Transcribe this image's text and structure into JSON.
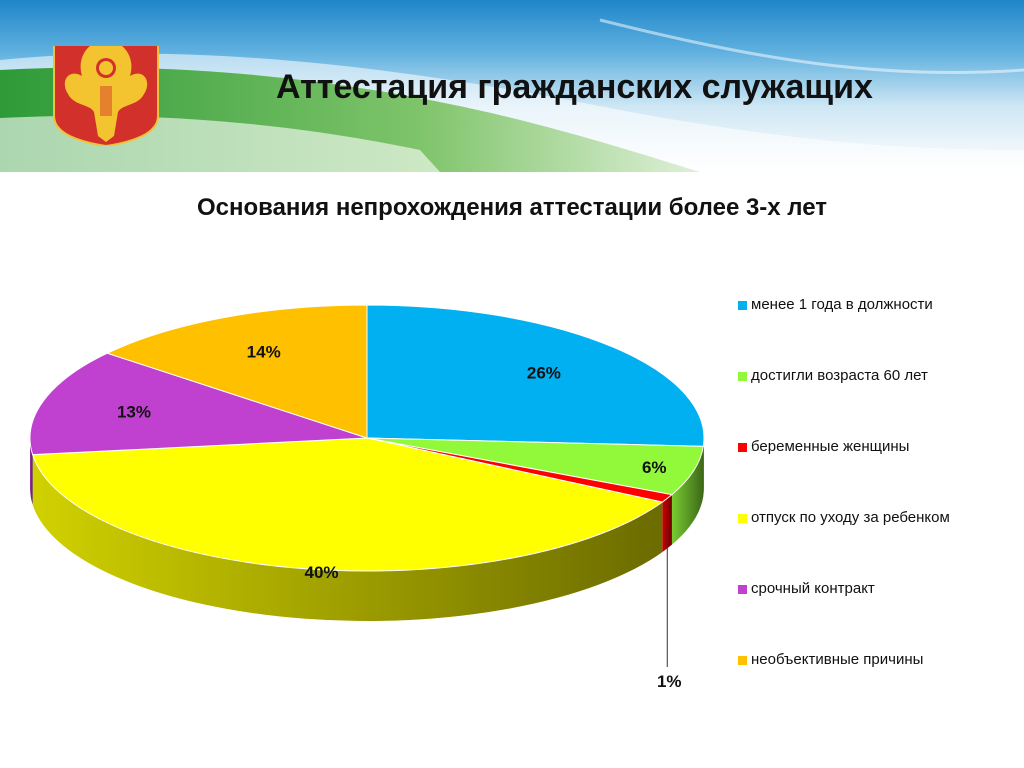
{
  "header": {
    "title": "Аттестация гражданских служащих",
    "logo_icon": "komi-coat-of-arms-icon"
  },
  "chart_data": {
    "type": "pie",
    "title": "Основания непрохождения аттестации более 3-х лет",
    "legend_position": "right",
    "three_d": true,
    "slices": [
      {
        "label": "менее 1 года в должности",
        "value": 26,
        "display": "26%",
        "color": "#00b0f0"
      },
      {
        "label": "достигли возраста 60 лет",
        "value": 6,
        "display": "6%",
        "color": "#92f83a"
      },
      {
        "label": "беременные женщины",
        "value": 1,
        "display": "1%",
        "color": "#ff0000"
      },
      {
        "label": "отпуск по уходу за ребенком",
        "value": 40,
        "display": "40%",
        "color": "#ffff00"
      },
      {
        "label": "срочный контракт",
        "value": 13,
        "display": "13%",
        "color": "#c040d0"
      },
      {
        "label": "необъективные причины",
        "value": 14,
        "display": "14%",
        "color": "#ffc000"
      }
    ]
  }
}
